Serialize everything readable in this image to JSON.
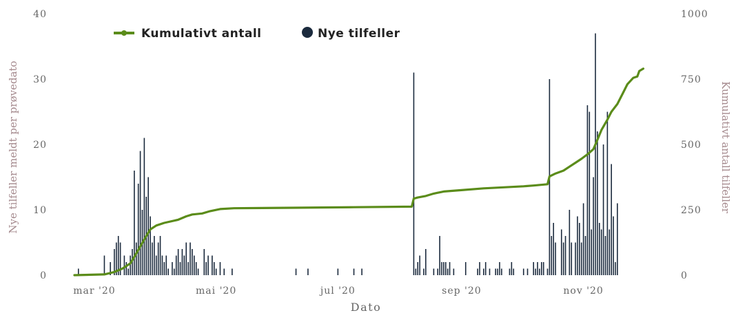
{
  "chart_data": {
    "type": "bar+line",
    "title": "",
    "xlabel": "Dato",
    "ylabel_left": "Nye tilfeller meldt per prøvedato",
    "ylabel_right": "Kumulativt antall tilfeller",
    "ylim_left": [
      0,
      40
    ],
    "ylim_right": [
      0,
      1000
    ],
    "yticks_left": [
      "0",
      "10",
      "20",
      "30",
      "40"
    ],
    "yticks_right": [
      "0",
      "250",
      "500",
      "750",
      "1000"
    ],
    "x_range_days": [
      0,
      290
    ],
    "xticks": [
      {
        "label": "mar '20",
        "day": 10
      },
      {
        "label": "mai '20",
        "day": 71
      },
      {
        "label": "jul '20",
        "day": 132
      },
      {
        "label": "sep '20",
        "day": 194
      },
      {
        "label": "nov '20",
        "day": 255
      }
    ],
    "legend": {
      "placement": "top-left",
      "items": [
        {
          "label": "Kumulativt antall",
          "color": "#5b8c1a",
          "marker": "line"
        },
        {
          "label": "Nye tilfeller",
          "color": "#1b2a3d",
          "marker": "dot"
        }
      ]
    },
    "colors": {
      "bars": "#1b2a3d",
      "cumulative": "#5b8c1a"
    },
    "series": [
      {
        "name": "Nye tilfeller",
        "axis": "left",
        "type": "bar",
        "points": [
          [
            2,
            1
          ],
          [
            15,
            3
          ],
          [
            18,
            2
          ],
          [
            20,
            4
          ],
          [
            21,
            5
          ],
          [
            22,
            6
          ],
          [
            23,
            5
          ],
          [
            25,
            3
          ],
          [
            26,
            2
          ],
          [
            27,
            1
          ],
          [
            28,
            3
          ],
          [
            29,
            4
          ],
          [
            30,
            16
          ],
          [
            31,
            5
          ],
          [
            32,
            14
          ],
          [
            33,
            19
          ],
          [
            34,
            10
          ],
          [
            35,
            21
          ],
          [
            36,
            12
          ],
          [
            37,
            15
          ],
          [
            38,
            9
          ],
          [
            39,
            5
          ],
          [
            40,
            6
          ],
          [
            41,
            3
          ],
          [
            42,
            5
          ],
          [
            43,
            6
          ],
          [
            44,
            3
          ],
          [
            45,
            2
          ],
          [
            46,
            3
          ],
          [
            47,
            1
          ],
          [
            49,
            2
          ],
          [
            50,
            1
          ],
          [
            51,
            3
          ],
          [
            52,
            4
          ],
          [
            53,
            2
          ],
          [
            54,
            4
          ],
          [
            55,
            3
          ],
          [
            56,
            5
          ],
          [
            57,
            2
          ],
          [
            58,
            5
          ],
          [
            59,
            4
          ],
          [
            60,
            3
          ],
          [
            61,
            2
          ],
          [
            62,
            1
          ],
          [
            65,
            4
          ],
          [
            66,
            2
          ],
          [
            67,
            3
          ],
          [
            69,
            3
          ],
          [
            70,
            2
          ],
          [
            71,
            1
          ],
          [
            73,
            2
          ],
          [
            75,
            1
          ],
          [
            79,
            1
          ],
          [
            111,
            1
          ],
          [
            117,
            1
          ],
          [
            132,
            1
          ],
          [
            140,
            1
          ],
          [
            144,
            1
          ],
          [
            170,
            31
          ],
          [
            171,
            1
          ],
          [
            172,
            2
          ],
          [
            173,
            3
          ],
          [
            175,
            1
          ],
          [
            176,
            4
          ],
          [
            180,
            1
          ],
          [
            182,
            1
          ],
          [
            183,
            6
          ],
          [
            184,
            2
          ],
          [
            185,
            2
          ],
          [
            186,
            2
          ],
          [
            187,
            1
          ],
          [
            188,
            2
          ],
          [
            190,
            1
          ],
          [
            196,
            2
          ],
          [
            202,
            1
          ],
          [
            203,
            2
          ],
          [
            205,
            1
          ],
          [
            206,
            2
          ],
          [
            208,
            1
          ],
          [
            211,
            1
          ],
          [
            212,
            1
          ],
          [
            213,
            2
          ],
          [
            214,
            1
          ],
          [
            218,
            1
          ],
          [
            219,
            2
          ],
          [
            220,
            1
          ],
          [
            225,
            1
          ],
          [
            227,
            1
          ],
          [
            230,
            2
          ],
          [
            231,
            1
          ],
          [
            232,
            2
          ],
          [
            233,
            1
          ],
          [
            234,
            2
          ],
          [
            235,
            2
          ],
          [
            237,
            1
          ],
          [
            238,
            30
          ],
          [
            239,
            6
          ],
          [
            240,
            8
          ],
          [
            241,
            5
          ],
          [
            244,
            7
          ],
          [
            245,
            5
          ],
          [
            246,
            6
          ],
          [
            248,
            10
          ],
          [
            249,
            5
          ],
          [
            251,
            5
          ],
          [
            252,
            9
          ],
          [
            253,
            8
          ],
          [
            254,
            5
          ],
          [
            255,
            11
          ],
          [
            256,
            6
          ],
          [
            257,
            26
          ],
          [
            258,
            25
          ],
          [
            259,
            7
          ],
          [
            260,
            15
          ],
          [
            261,
            37
          ],
          [
            262,
            22
          ],
          [
            263,
            8
          ],
          [
            264,
            7
          ],
          [
            265,
            20
          ],
          [
            266,
            6
          ],
          [
            267,
            25
          ],
          [
            268,
            7
          ],
          [
            269,
            17
          ],
          [
            270,
            9
          ],
          [
            271,
            2
          ],
          [
            272,
            11
          ]
        ]
      },
      {
        "name": "Kumulativt antall",
        "axis": "right",
        "type": "line",
        "points": [
          [
            0,
            0
          ],
          [
            15,
            3
          ],
          [
            20,
            12
          ],
          [
            24,
            25
          ],
          [
            28,
            45
          ],
          [
            30,
            70
          ],
          [
            33,
            110
          ],
          [
            36,
            150
          ],
          [
            38,
            175
          ],
          [
            41,
            190
          ],
          [
            45,
            200
          ],
          [
            52,
            212
          ],
          [
            56,
            225
          ],
          [
            59,
            232
          ],
          [
            64,
            236
          ],
          [
            68,
            245
          ],
          [
            73,
            253
          ],
          [
            80,
            256
          ],
          [
            110,
            258
          ],
          [
            140,
            260
          ],
          [
            169,
            262
          ],
          [
            170,
            293
          ],
          [
            172,
            297
          ],
          [
            176,
            303
          ],
          [
            180,
            312
          ],
          [
            185,
            320
          ],
          [
            195,
            326
          ],
          [
            205,
            332
          ],
          [
            215,
            336
          ],
          [
            225,
            340
          ],
          [
            230,
            343
          ],
          [
            237,
            348
          ],
          [
            238,
            378
          ],
          [
            241,
            389
          ],
          [
            245,
            400
          ],
          [
            248,
            415
          ],
          [
            251,
            430
          ],
          [
            254,
            445
          ],
          [
            257,
            462
          ],
          [
            260,
            482
          ],
          [
            262,
            518
          ],
          [
            264,
            555
          ],
          [
            267,
            595
          ],
          [
            269,
            625
          ],
          [
            272,
            655
          ],
          [
            275,
            700
          ],
          [
            277,
            730
          ],
          [
            280,
            755
          ],
          [
            282,
            760
          ],
          [
            283,
            781
          ],
          [
            285,
            790
          ]
        ]
      }
    ]
  }
}
